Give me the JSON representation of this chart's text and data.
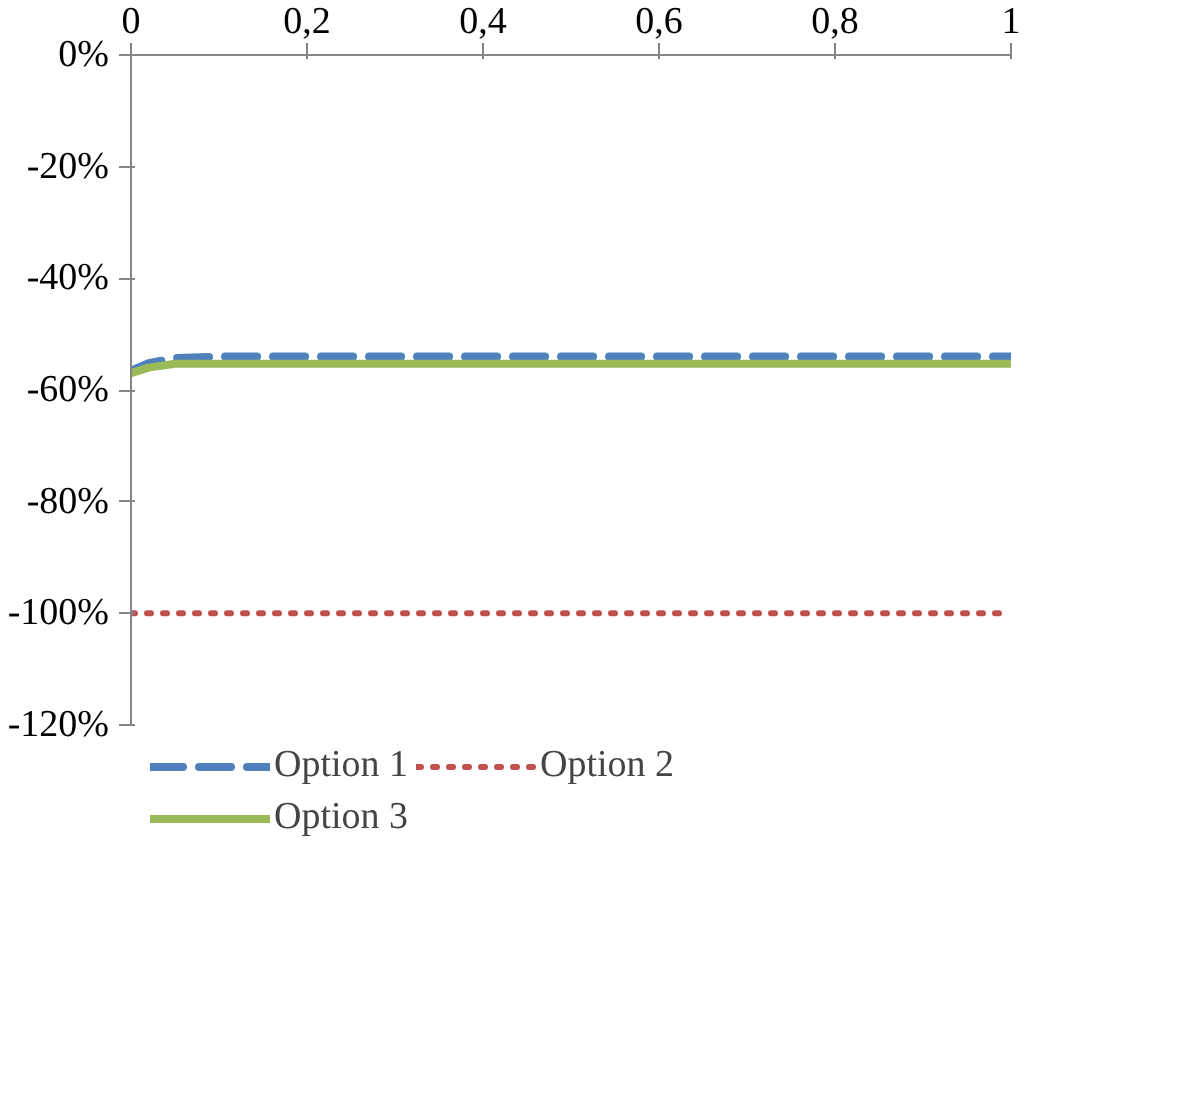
{
  "chart_data": {
    "type": "line",
    "x": [
      0,
      0.02,
      0.05,
      0.1,
      0.2,
      0.3,
      0.4,
      0.5,
      0.6,
      0.7,
      0.8,
      0.9,
      1
    ],
    "series": [
      {
        "name": "Option 1",
        "color": "#4f81bd",
        "line_style": "dashed",
        "values": [
          -56.5,
          -55.2,
          -54.3,
          -54,
          -54,
          -54,
          -54,
          -54,
          -54,
          -54,
          -54,
          -54,
          -54
        ]
      },
      {
        "name": "Option 2",
        "color": "#c0504d",
        "line_style": "dotted",
        "values": [
          -100,
          -100,
          -100,
          -100,
          -100,
          -100,
          -100,
          -100,
          -100,
          -100,
          -100,
          -100,
          -100
        ]
      },
      {
        "name": "Option 3",
        "color": "#9bbb59",
        "line_style": "solid",
        "values": [
          -57,
          -56,
          -55.3,
          -55.3,
          -55.3,
          -55.3,
          -55.3,
          -55.3,
          -55.3,
          -55.3,
          -55.3,
          -55.3,
          -55.3
        ]
      }
    ],
    "xlim": [
      0,
      1
    ],
    "xticks": [
      0,
      {
        "value": 0.2,
        "label": "0,2"
      },
      {
        "value": 0.4,
        "label": "0,4"
      },
      {
        "value": 0.6,
        "label": "0,6"
      },
      {
        "value": 0.8,
        "label": "0,8"
      },
      1
    ],
    "ylim": [
      -120,
      0
    ],
    "yticks": [
      {
        "value": 0,
        "label": "0%"
      },
      {
        "value": -20,
        "label": "-20%"
      },
      {
        "value": -40,
        "label": "-40%"
      },
      {
        "value": -60,
        "label": "-60%"
      },
      {
        "value": -80,
        "label": "-80%"
      },
      {
        "value": -100,
        "label": "-100%"
      },
      {
        "value": -120,
        "label": "-120%"
      }
    ],
    "grid": false,
    "legend": "bottom",
    "marker": "none"
  }
}
